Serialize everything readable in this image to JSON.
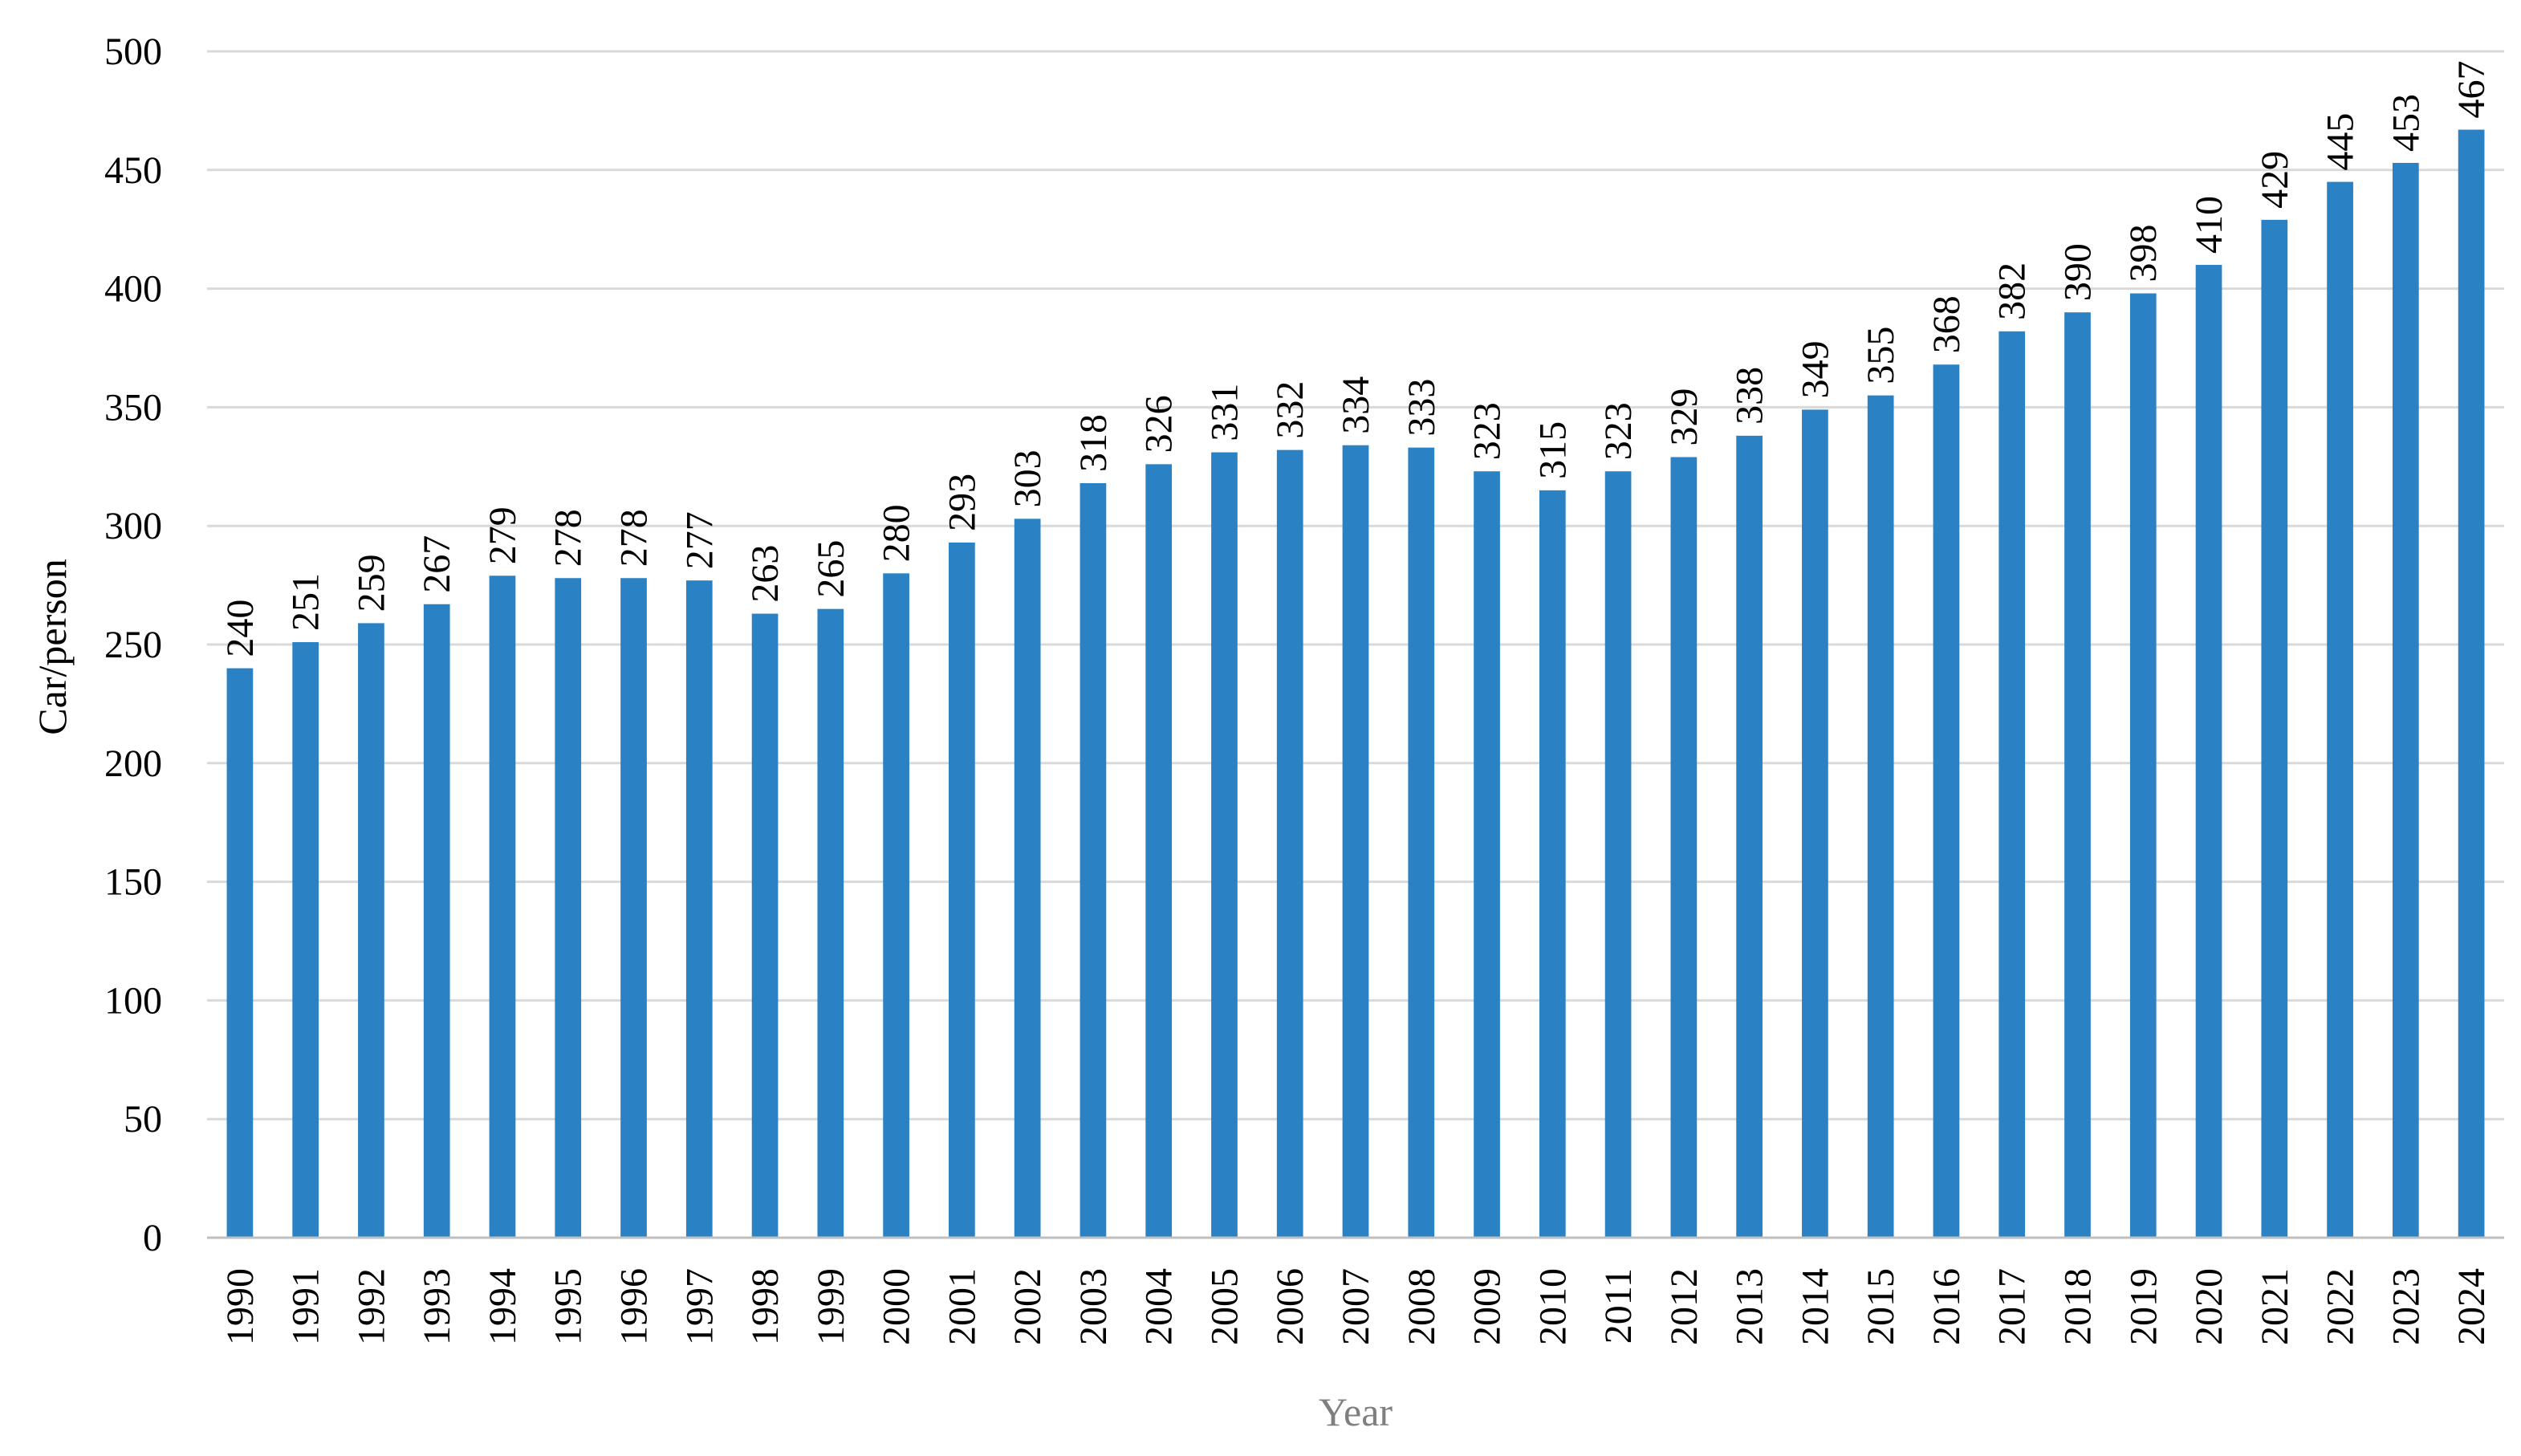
{
  "chart_data": {
    "type": "bar",
    "title": "",
    "xlabel": "Year",
    "ylabel": "Car/person",
    "ylim": [
      0,
      500
    ],
    "yticks": [
      0,
      50,
      100,
      150,
      200,
      250,
      300,
      350,
      400,
      450,
      500
    ],
    "grid": true,
    "legend": "none",
    "categories": [
      "1990",
      "1991",
      "1992",
      "1993",
      "1994",
      "1995",
      "1996",
      "1997",
      "1998",
      "1999",
      "2000",
      "2001",
      "2002",
      "2003",
      "2004",
      "2005",
      "2006",
      "2007",
      "2008",
      "2009",
      "2010",
      "2011",
      "2012",
      "2013",
      "2014",
      "2015",
      "2016",
      "2017",
      "2018",
      "2019",
      "2020",
      "2021",
      "2022",
      "2023",
      "2024"
    ],
    "series": [
      {
        "name": "Car/person",
        "values": [
          240,
          251,
          259,
          267,
          279,
          278,
          278,
          277,
          263,
          265,
          280,
          293,
          303,
          318,
          326,
          331,
          332,
          334,
          333,
          323,
          315,
          323,
          329,
          338,
          349,
          355,
          368,
          382,
          390,
          398,
          410,
          429,
          445,
          453,
          467
        ],
        "color": "#2a82c4"
      }
    ],
    "gridline_color": "#d9d9d9",
    "axis_color": "#bfbfbf"
  }
}
